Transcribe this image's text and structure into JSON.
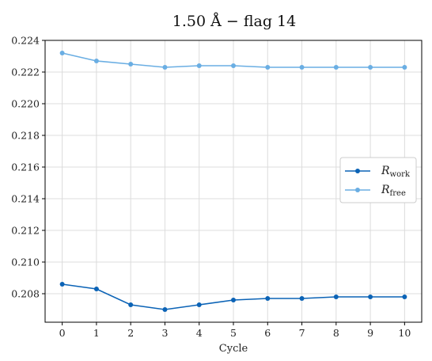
{
  "chart_data": {
    "type": "line",
    "title": "1.50 Å − flag 14",
    "xlabel": "Cycle",
    "ylabel": "",
    "x": [
      0,
      1,
      2,
      3,
      4,
      5,
      6,
      7,
      8,
      9,
      10
    ],
    "xlim": [
      -0.5,
      10.5
    ],
    "ylim": [
      0.2062,
      0.224
    ],
    "xticks": [
      "0",
      "1",
      "2",
      "3",
      "4",
      "5",
      "6",
      "7",
      "8",
      "9",
      "10"
    ],
    "yticks": [
      "0.208",
      "0.210",
      "0.212",
      "0.214",
      "0.216",
      "0.218",
      "0.220",
      "0.222",
      "0.224"
    ],
    "grid": true,
    "legend_position": "center-right",
    "series": [
      {
        "name": "R_work",
        "label_main": "R",
        "label_sub": "work",
        "color": "#0b63b6",
        "values": [
          0.2086,
          0.2083,
          0.2073,
          0.207,
          0.2073,
          0.2076,
          0.2077,
          0.2077,
          0.2078,
          0.2078,
          0.2078
        ]
      },
      {
        "name": "R_free",
        "label_main": "R",
        "label_sub": "free",
        "color": "#6aaee3",
        "values": [
          0.2232,
          0.2227,
          0.2225,
          0.2223,
          0.2224,
          0.2224,
          0.2223,
          0.2223,
          0.2223,
          0.2223,
          0.2223
        ]
      }
    ]
  }
}
